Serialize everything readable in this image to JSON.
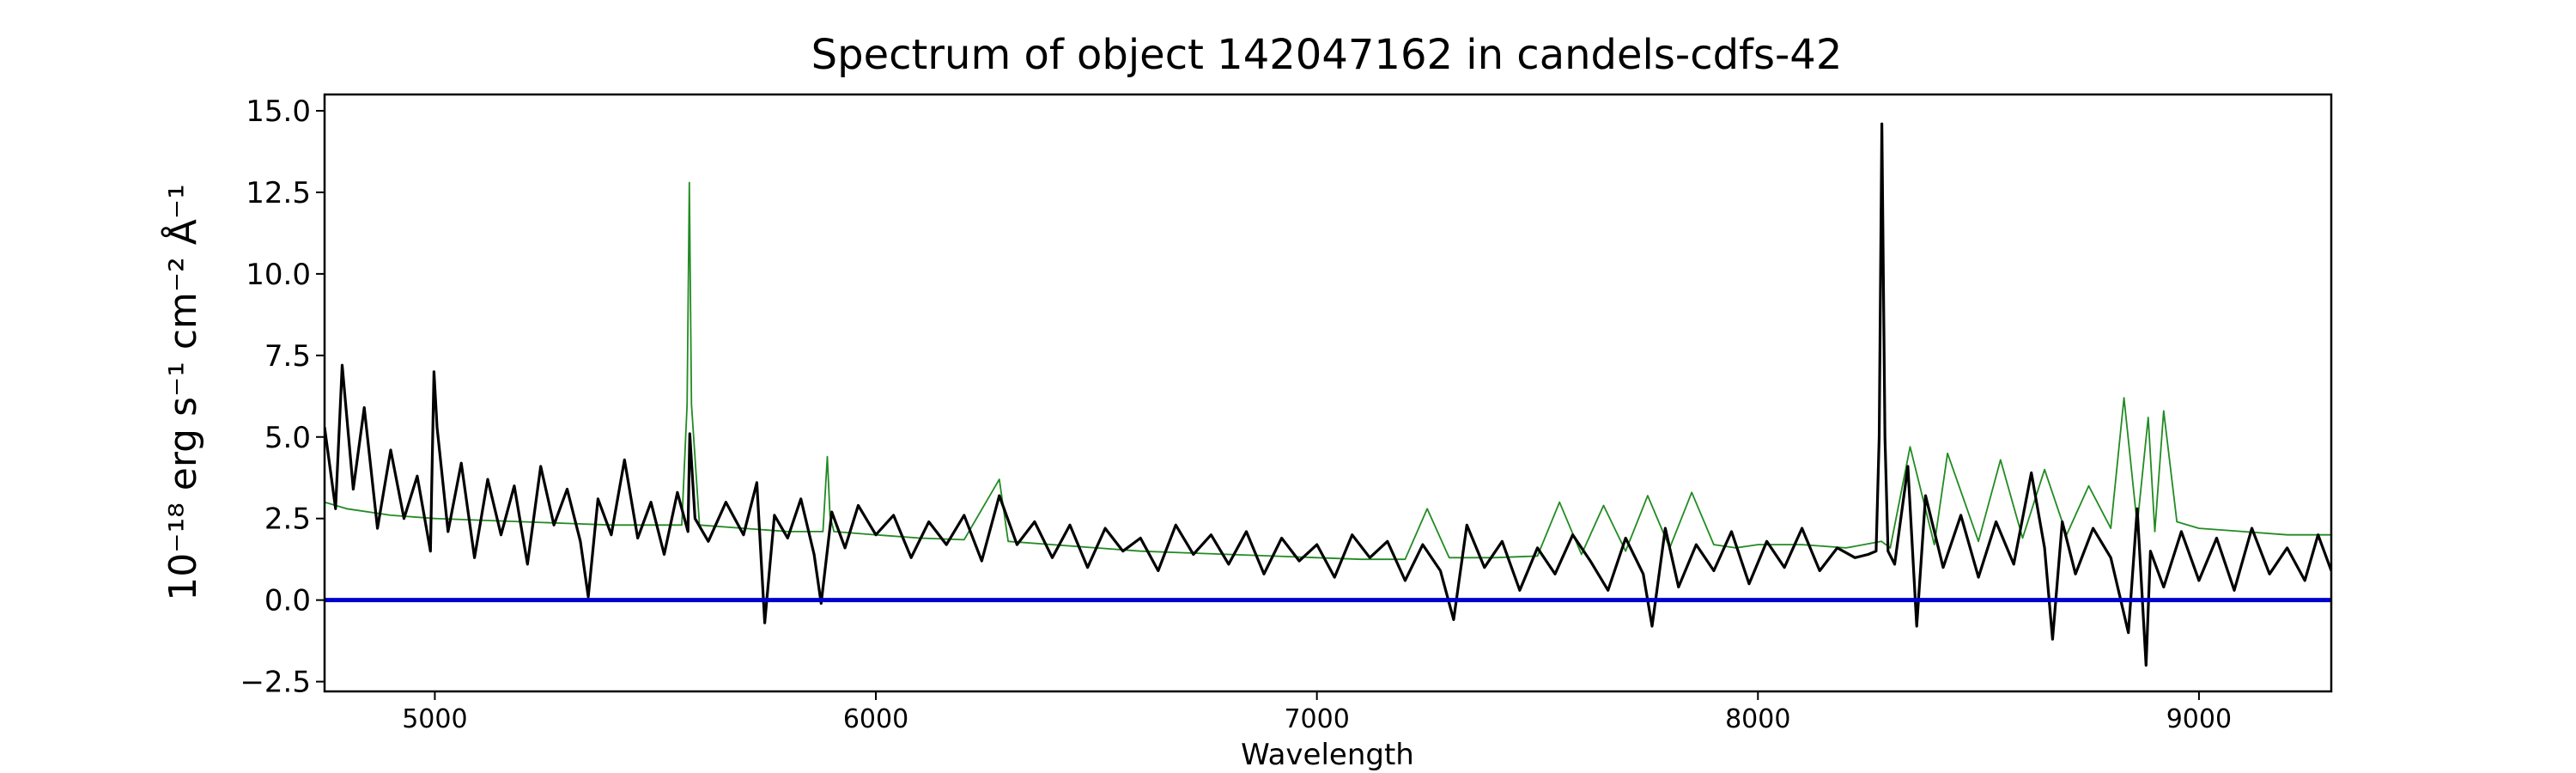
{
  "chart_data": {
    "type": "line",
    "title": "Spectrum of object 142047162 in candels-cdfs-42",
    "xlabel": "Wavelength",
    "ylabel": "10⁻¹⁸ erg s⁻¹ cm⁻² Å⁻¹",
    "xlim": [
      4750,
      9300
    ],
    "ylim": [
      -2.8,
      15.5
    ],
    "x_ticks": [
      5000,
      6000,
      7000,
      8000,
      9000
    ],
    "y_ticks": [
      -2.5,
      0.0,
      2.5,
      5.0,
      7.5,
      10.0,
      12.5,
      15.0
    ],
    "x_tick_labels": [
      "5000",
      "6000",
      "7000",
      "8000",
      "9000"
    ],
    "y_tick_labels": [
      "−2.5",
      "0.0",
      "2.5",
      "5.0",
      "7.5",
      "10.0",
      "12.5",
      "15.0"
    ],
    "grid": false,
    "zero_line": {
      "y": 0,
      "color": "#0000cc"
    },
    "series": [
      {
        "role": "model",
        "color": "#228b22",
        "x": [
          4750,
          4800,
          4900,
          5000,
          5100,
          5200,
          5300,
          5400,
          5500,
          5560,
          5572,
          5577,
          5582,
          5600,
          5700,
          5800,
          5880,
          5890,
          5896,
          5905,
          6000,
          6100,
          6200,
          6280,
          6300,
          6400,
          6500,
          6600,
          6700,
          6800,
          6900,
          7000,
          7100,
          7200,
          7250,
          7300,
          7400,
          7500,
          7550,
          7600,
          7650,
          7700,
          7750,
          7800,
          7850,
          7900,
          7950,
          8000,
          8100,
          8200,
          8280,
          8300,
          8345,
          8400,
          8430,
          8500,
          8550,
          8600,
          8650,
          8700,
          8750,
          8800,
          8830,
          8860,
          8885,
          8900,
          8920,
          8950,
          9000,
          9100,
          9200,
          9300
        ],
        "y": [
          3.0,
          2.8,
          2.6,
          2.5,
          2.45,
          2.4,
          2.35,
          2.3,
          2.3,
          2.3,
          6.0,
          12.8,
          6.0,
          2.3,
          2.2,
          2.1,
          2.1,
          4.4,
          2.6,
          2.1,
          2.0,
          1.9,
          1.85,
          3.7,
          1.8,
          1.7,
          1.6,
          1.5,
          1.45,
          1.4,
          1.35,
          1.3,
          1.25,
          1.25,
          2.8,
          1.3,
          1.3,
          1.35,
          3.0,
          1.4,
          2.9,
          1.5,
          3.2,
          1.6,
          3.3,
          1.7,
          1.6,
          1.7,
          1.7,
          1.6,
          1.8,
          1.6,
          4.7,
          1.7,
          4.5,
          1.8,
          4.3,
          1.9,
          4.0,
          2.0,
          3.5,
          2.2,
          6.2,
          2.3,
          5.6,
          2.1,
          5.8,
          2.4,
          2.2,
          2.1,
          2.0,
          2.0
        ]
      },
      {
        "role": "observed",
        "color": "#000000",
        "x": [
          4750,
          4775,
          4790,
          4815,
          4840,
          4870,
          4900,
          4930,
          4960,
          4990,
          4998,
          5005,
          5030,
          5060,
          5090,
          5120,
          5150,
          5180,
          5210,
          5240,
          5270,
          5300,
          5330,
          5348,
          5370,
          5400,
          5430,
          5460,
          5490,
          5520,
          5550,
          5574,
          5578,
          5590,
          5620,
          5660,
          5700,
          5730,
          5748,
          5770,
          5800,
          5830,
          5860,
          5876,
          5900,
          5930,
          5960,
          6000,
          6040,
          6080,
          6120,
          6160,
          6200,
          6240,
          6280,
          6320,
          6360,
          6400,
          6440,
          6480,
          6520,
          6560,
          6600,
          6640,
          6680,
          6720,
          6760,
          6800,
          6840,
          6880,
          6920,
          6960,
          7000,
          7040,
          7080,
          7120,
          7160,
          7200,
          7240,
          7280,
          7310,
          7340,
          7380,
          7420,
          7460,
          7500,
          7540,
          7580,
          7620,
          7660,
          7700,
          7740,
          7760,
          7790,
          7820,
          7860,
          7900,
          7940,
          7980,
          8020,
          8060,
          8100,
          8140,
          8180,
          8220,
          8250,
          8268,
          8275,
          8281,
          8288,
          8295,
          8310,
          8340,
          8360,
          8380,
          8420,
          8460,
          8500,
          8540,
          8580,
          8620,
          8650,
          8668,
          8690,
          8720,
          8760,
          8800,
          8840,
          8860,
          8880,
          8890,
          8920,
          8960,
          9000,
          9040,
          9080,
          9120,
          9160,
          9200,
          9240,
          9270,
          9300
        ],
        "y": [
          5.3,
          2.8,
          7.2,
          3.4,
          5.9,
          2.2,
          4.6,
          2.5,
          3.8,
          1.5,
          7.0,
          5.3,
          2.1,
          4.2,
          1.3,
          3.7,
          2.0,
          3.5,
          1.1,
          4.1,
          2.3,
          3.4,
          1.8,
          0.1,
          3.1,
          2.0,
          4.3,
          1.9,
          3.0,
          1.4,
          3.3,
          2.1,
          5.1,
          2.5,
          1.8,
          3.0,
          2.0,
          3.6,
          -0.7,
          2.6,
          1.9,
          3.1,
          1.4,
          -0.1,
          2.7,
          1.6,
          2.9,
          2.0,
          2.6,
          1.3,
          2.4,
          1.7,
          2.6,
          1.2,
          3.2,
          1.7,
          2.4,
          1.3,
          2.3,
          1.0,
          2.2,
          1.5,
          1.9,
          0.9,
          2.3,
          1.4,
          2.0,
          1.1,
          2.1,
          0.8,
          1.9,
          1.2,
          1.7,
          0.7,
          2.0,
          1.3,
          1.8,
          0.6,
          1.7,
          0.9,
          -0.6,
          2.3,
          1.0,
          1.8,
          0.3,
          1.6,
          0.8,
          2.0,
          1.2,
          0.3,
          1.9,
          0.8,
          -0.8,
          2.2,
          0.4,
          1.7,
          0.9,
          2.1,
          0.5,
          1.8,
          1.0,
          2.2,
          0.9,
          1.6,
          1.3,
          1.4,
          1.5,
          5.0,
          14.6,
          5.0,
          1.5,
          1.1,
          4.1,
          -0.8,
          3.2,
          1.0,
          2.6,
          0.7,
          2.4,
          1.1,
          3.9,
          1.6,
          -1.2,
          2.4,
          0.8,
          2.2,
          1.3,
          -1.0,
          2.8,
          -2.0,
          1.5,
          0.4,
          2.1,
          0.6,
          1.9,
          0.3,
          2.2,
          0.8,
          1.6,
          0.6,
          2.0,
          0.9
        ]
      }
    ]
  }
}
